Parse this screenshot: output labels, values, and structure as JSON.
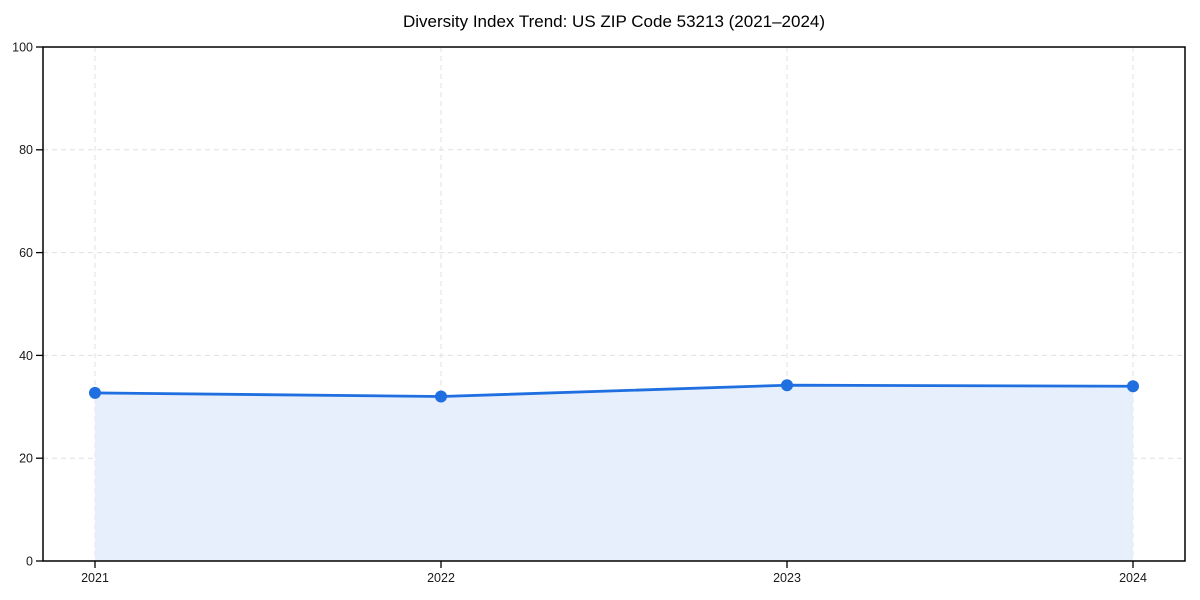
{
  "chart_data": {
    "type": "line",
    "title": "Diversity Index Trend: US ZIP Code 53213 (2021–2024)",
    "x": [
      "2021",
      "2022",
      "2023",
      "2024"
    ],
    "series": [
      {
        "name": "Diversity Index",
        "values": [
          32.7,
          32.0,
          34.2,
          34.0
        ]
      }
    ],
    "xlabel": "",
    "ylabel": "",
    "ylim": [
      0,
      100
    ],
    "yticks": [
      0,
      20,
      40,
      60,
      80,
      100
    ],
    "grid": "dashed, both axes",
    "legend": "none",
    "line_color": "#1f6fe0",
    "fill_color": "#e7effc",
    "grid_color": "#e0e0e0",
    "marker": "circle",
    "background": "#ffffff"
  }
}
